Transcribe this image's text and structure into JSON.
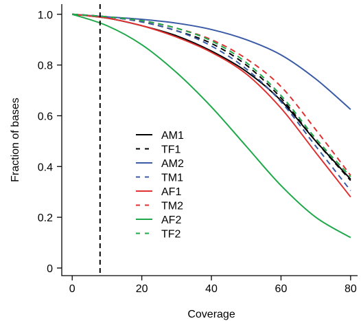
{
  "chart_data": {
    "type": "line",
    "xlabel": "Coverage",
    "ylabel": "Fraction of bases",
    "xlim": [
      -3,
      82
    ],
    "ylim": [
      -0.03,
      1.04
    ],
    "xticks": [
      0,
      20,
      40,
      60,
      80
    ],
    "xtick_labels": [
      "0",
      "20",
      "40",
      "60",
      "80"
    ],
    "yticks": [
      0,
      0.2,
      0.4,
      0.6,
      0.8,
      1.0
    ],
    "ytick_labels": [
      "0",
      "0.2",
      "0.4",
      "0.6",
      "0.8",
      "1.0"
    ],
    "vline": {
      "x": 8,
      "style": "dashed",
      "color": "#000000"
    },
    "legend": {
      "placement": "center-left"
    },
    "series": [
      {
        "name": "AM1",
        "color": "#000000",
        "dash": false,
        "x": [
          0,
          10,
          20,
          30,
          40,
          50,
          60,
          70,
          80
        ],
        "y": [
          1.0,
          0.985,
          0.955,
          0.915,
          0.855,
          0.775,
          0.66,
          0.5,
          0.35
        ]
      },
      {
        "name": "TF1",
        "color": "#000000",
        "dash": true,
        "x": [
          0,
          10,
          20,
          30,
          40,
          50,
          60,
          70,
          80
        ],
        "y": [
          1.0,
          0.99,
          0.97,
          0.935,
          0.885,
          0.8,
          0.67,
          0.5,
          0.345
        ]
      },
      {
        "name": "AM2",
        "color": "#3a5aa6",
        "dash": false,
        "x": [
          0,
          10,
          20,
          30,
          40,
          50,
          60,
          70,
          80
        ],
        "y": [
          1.0,
          0.99,
          0.98,
          0.965,
          0.94,
          0.9,
          0.84,
          0.745,
          0.625
        ]
      },
      {
        "name": "TM1",
        "color": "#3a5aa6",
        "dash": true,
        "x": [
          0,
          10,
          20,
          30,
          40,
          50,
          60,
          70,
          80
        ],
        "y": [
          1.0,
          0.99,
          0.97,
          0.935,
          0.875,
          0.785,
          0.655,
          0.48,
          0.305
        ]
      },
      {
        "name": "AF1",
        "color": "#e03030",
        "dash": false,
        "x": [
          0,
          10,
          20,
          30,
          40,
          50,
          60,
          70,
          80
        ],
        "y": [
          1.0,
          0.985,
          0.955,
          0.91,
          0.85,
          0.765,
          0.63,
          0.455,
          0.28
        ]
      },
      {
        "name": "TM2",
        "color": "#e03030",
        "dash": true,
        "x": [
          0,
          10,
          20,
          30,
          40,
          50,
          60,
          70,
          80
        ],
        "y": [
          1.0,
          0.99,
          0.975,
          0.945,
          0.9,
          0.825,
          0.715,
          0.545,
          0.365
        ]
      },
      {
        "name": "AF2",
        "color": "#1fa84a",
        "dash": false,
        "x": [
          0,
          10,
          20,
          30,
          40,
          50,
          60,
          70,
          80
        ],
        "y": [
          1.0,
          0.955,
          0.88,
          0.77,
          0.635,
          0.48,
          0.325,
          0.2,
          0.12
        ]
      },
      {
        "name": "TF2",
        "color": "#1fa84a",
        "dash": true,
        "x": [
          0,
          10,
          20,
          30,
          40,
          50,
          60,
          70,
          80
        ],
        "y": [
          1.0,
          0.99,
          0.975,
          0.945,
          0.895,
          0.81,
          0.68,
          0.51,
          0.36
        ]
      }
    ]
  }
}
